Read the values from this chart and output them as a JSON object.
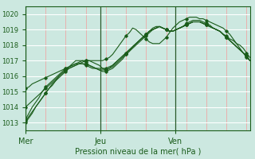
{
  "bg_color": "#cce8e0",
  "grid_color_major": "#ffffff",
  "grid_color_minor": "#b8ddd5",
  "line_color": "#1a5c1a",
  "marker_color": "#1a5c1a",
  "xlabel": "Pression niveau de la mer( hPa )",
  "ylim": [
    1012.5,
    1020.5
  ],
  "yticks": [
    1013,
    1014,
    1015,
    1016,
    1017,
    1018,
    1019,
    1020
  ],
  "day_labels": [
    "Mer",
    "Jeu",
    "Ven"
  ],
  "day_positions": [
    0,
    0.333,
    0.667
  ],
  "red_grid_color": "#ff8888",
  "series": [
    [
      1013.1,
      1013.4,
      1013.7,
      1014.0,
      1014.3,
      1014.6,
      1014.9,
      1015.2,
      1015.5,
      1015.7,
      1016.0,
      1016.2,
      1016.4,
      1016.6,
      1016.8,
      1017.0,
      1017.0,
      1017.0,
      1017.0,
      1017.0,
      1017.0,
      1017.0,
      1017.0,
      1017.0,
      1017.1,
      1017.2,
      1017.4,
      1017.7,
      1018.0,
      1018.3,
      1018.6,
      1018.8,
      1019.1,
      1019.0,
      1018.8,
      1018.6,
      1018.4,
      1018.2,
      1018.1,
      1018.1,
      1018.1,
      1018.3,
      1018.5,
      1018.8,
      1019.1,
      1019.3,
      1019.5,
      1019.6,
      1019.7,
      1019.8,
      1019.8,
      1019.8,
      1019.7,
      1019.7,
      1019.6,
      1019.5,
      1019.4,
      1019.3,
      1019.2,
      1019.1,
      1018.9,
      1018.7,
      1018.4,
      1018.1,
      1017.8,
      1017.5,
      1017.2,
      1017.0
    ],
    [
      1013.2,
      1013.6,
      1014.0,
      1014.3,
      1014.6,
      1015.0,
      1015.3,
      1015.5,
      1015.7,
      1015.9,
      1016.1,
      1016.3,
      1016.5,
      1016.6,
      1016.7,
      1016.8,
      1016.9,
      1017.0,
      1016.9,
      1016.7,
      1016.6,
      1016.5,
      1016.4,
      1016.3,
      1016.3,
      1016.4,
      1016.5,
      1016.7,
      1016.9,
      1017.1,
      1017.4,
      1017.6,
      1017.9,
      1018.1,
      1018.3,
      1018.5,
      1018.7,
      1018.9,
      1019.1,
      1019.2,
      1019.2,
      1019.1,
      1019.0,
      1018.9,
      1018.9,
      1019.0,
      1019.1,
      1019.2,
      1019.4,
      1019.5,
      1019.6,
      1019.6,
      1019.6,
      1019.5,
      1019.4,
      1019.3,
      1019.1,
      1019.0,
      1018.9,
      1018.7,
      1018.6,
      1018.4,
      1018.3,
      1018.1,
      1018.0,
      1017.8,
      1017.5,
      1017.2
    ],
    [
      1013.0,
      1013.3,
      1013.6,
      1014.0,
      1014.3,
      1014.6,
      1014.9,
      1015.2,
      1015.4,
      1015.7,
      1015.9,
      1016.1,
      1016.3,
      1016.5,
      1016.6,
      1016.7,
      1016.8,
      1016.9,
      1017.0,
      1017.0,
      1016.9,
      1016.8,
      1016.7,
      1016.5,
      1016.4,
      1016.5,
      1016.7,
      1016.9,
      1017.1,
      1017.3,
      1017.5,
      1017.7,
      1017.9,
      1018.1,
      1018.3,
      1018.5,
      1018.7,
      1018.9,
      1019.0,
      1019.1,
      1019.2,
      1019.1,
      1019.0,
      1018.9,
      1018.9,
      1019.0,
      1019.1,
      1019.2,
      1019.3,
      1019.4,
      1019.5,
      1019.5,
      1019.5,
      1019.4,
      1019.3,
      1019.2,
      1019.1,
      1019.0,
      1018.9,
      1018.7,
      1018.5,
      1018.3,
      1018.1,
      1017.9,
      1017.7,
      1017.5,
      1017.3,
      1017.0
    ],
    [
      1014.0,
      1014.2,
      1014.4,
      1014.6,
      1014.8,
      1015.0,
      1015.2,
      1015.4,
      1015.6,
      1015.8,
      1016.0,
      1016.2,
      1016.4,
      1016.5,
      1016.6,
      1016.7,
      1016.8,
      1016.8,
      1016.8,
      1016.7,
      1016.6,
      1016.5,
      1016.4,
      1016.4,
      1016.4,
      1016.5,
      1016.6,
      1016.8,
      1017.0,
      1017.2,
      1017.4,
      1017.6,
      1017.8,
      1018.0,
      1018.2,
      1018.4,
      1018.6,
      1018.8,
      1019.0,
      1019.1,
      1019.2,
      1019.1,
      1019.0,
      1018.9,
      1018.9,
      1019.0,
      1019.1,
      1019.2,
      1019.3,
      1019.4,
      1019.5,
      1019.5,
      1019.5,
      1019.4,
      1019.3,
      1019.2,
      1019.1,
      1019.0,
      1018.9,
      1018.7,
      1018.5,
      1018.3,
      1018.1,
      1017.9,
      1017.7,
      1017.5,
      1017.3,
      1017.0
    ],
    [
      1015.2,
      1015.3,
      1015.5,
      1015.6,
      1015.7,
      1015.8,
      1015.9,
      1016.0,
      1016.1,
      1016.2,
      1016.3,
      1016.4,
      1016.5,
      1016.6,
      1016.7,
      1016.8,
      1016.8,
      1016.8,
      1016.7,
      1016.6,
      1016.5,
      1016.5,
      1016.5,
      1016.5,
      1016.5,
      1016.6,
      1016.7,
      1016.9,
      1017.1,
      1017.3,
      1017.5,
      1017.7,
      1017.9,
      1018.1,
      1018.3,
      1018.5,
      1018.7,
      1018.9,
      1019.0,
      1019.1,
      1019.2,
      1019.1,
      1019.0,
      1018.9,
      1018.9,
      1019.0,
      1019.1,
      1019.2,
      1019.3,
      1019.4,
      1019.5,
      1019.5,
      1019.5,
      1019.4,
      1019.3,
      1019.2,
      1019.1,
      1019.0,
      1018.9,
      1018.7,
      1018.5,
      1018.3,
      1018.1,
      1017.9,
      1017.7,
      1017.5,
      1017.3,
      1017.0
    ]
  ]
}
